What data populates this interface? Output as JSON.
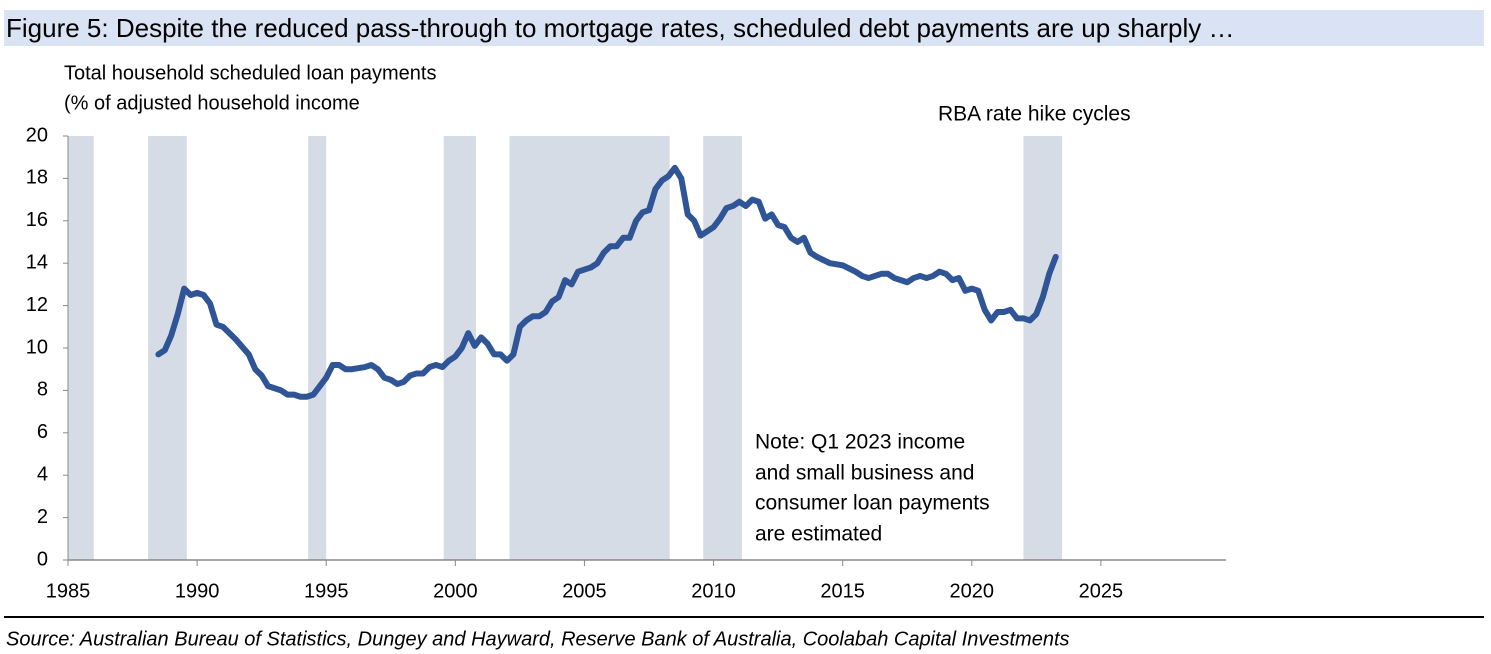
{
  "chart_data": {
    "type": "line",
    "title": "Figure 5: Despite the reduced pass-through to mortgage rates, scheduled debt payments are up sharply …",
    "y_label": [
      "Total household scheduled loan payments",
      "(% of adjusted household income"
    ],
    "shade_label": "RBA rate hike cycles",
    "note": [
      "Note: Q1 2023 income",
      "and small business and",
      "consumer loan payments",
      "are estimated"
    ],
    "source": "Source: Australian Bureau of Statistics, Dungey and Hayward, Reserve Bank of Australia, Coolabah Capital Investments",
    "shaded_ranges": [
      [
        1985.0,
        1986.0
      ],
      [
        1988.1,
        1989.6
      ],
      [
        1994.3,
        1995.0
      ],
      [
        1999.55,
        2000.8
      ],
      [
        2002.1,
        2008.3
      ],
      [
        2009.6,
        2011.1
      ],
      [
        2022.0,
        2023.5
      ]
    ],
    "shade_color": "#d6dce5",
    "x": [
      1988.5,
      1988.75,
      1989.0,
      1989.25,
      1989.5,
      1989.75,
      1990.0,
      1990.25,
      1990.5,
      1990.75,
      1991.0,
      1991.5,
      1992.0,
      1992.25,
      1992.5,
      1992.75,
      1993.0,
      1993.25,
      1993.5,
      1993.75,
      1994.0,
      1994.25,
      1994.5,
      1994.75,
      1995.0,
      1995.25,
      1995.5,
      1995.75,
      1996.0,
      1996.5,
      1996.75,
      1997.0,
      1997.25,
      1997.5,
      1997.75,
      1998.0,
      1998.25,
      1998.5,
      1998.75,
      1999.0,
      1999.25,
      1999.5,
      1999.75,
      2000.0,
      2000.25,
      2000.5,
      2000.75,
      2001.0,
      2001.25,
      2001.5,
      2001.75,
      2002.0,
      2002.25,
      2002.5,
      2002.75,
      2003.0,
      2003.25,
      2003.5,
      2003.75,
      2004.0,
      2004.25,
      2004.5,
      2004.75,
      2005.0,
      2005.25,
      2005.5,
      2005.75,
      2006.0,
      2006.25,
      2006.5,
      2006.75,
      2007.0,
      2007.25,
      2007.5,
      2007.75,
      2008.0,
      2008.25,
      2008.5,
      2008.75,
      2009.0,
      2009.25,
      2009.5,
      2009.75,
      2010.0,
      2010.25,
      2010.5,
      2010.75,
      2011.0,
      2011.25,
      2011.5,
      2011.75,
      2012.0,
      2012.25,
      2012.5,
      2012.75,
      2013.0,
      2013.25,
      2013.5,
      2013.75,
      2014.0,
      2014.5,
      2015.0,
      2015.5,
      2015.75,
      2016.0,
      2016.5,
      2016.75,
      2017.0,
      2017.25,
      2017.5,
      2017.75,
      2018.0,
      2018.25,
      2018.5,
      2018.75,
      2019.0,
      2019.25,
      2019.5,
      2019.75,
      2020.0,
      2020.25,
      2020.5,
      2020.75,
      2021.0,
      2021.25,
      2021.5,
      2021.75,
      2022.0,
      2022.25,
      2022.5,
      2022.75,
      2023.0,
      2023.25
    ],
    "series": [
      {
        "color": "#2f5597",
        "values": [
          9.7,
          9.9,
          10.6,
          11.6,
          12.8,
          12.5,
          12.6,
          12.5,
          12.1,
          11.1,
          11.0,
          10.4,
          9.7,
          9.0,
          8.7,
          8.2,
          8.1,
          8.0,
          7.8,
          7.8,
          7.7,
          7.7,
          7.8,
          8.2,
          8.6,
          9.2,
          9.2,
          9.0,
          9.0,
          9.1,
          9.2,
          9.0,
          8.6,
          8.5,
          8.3,
          8.4,
          8.7,
          8.8,
          8.8,
          9.1,
          9.2,
          9.1,
          9.4,
          9.6,
          10.0,
          10.7,
          10.1,
          10.5,
          10.2,
          9.7,
          9.7,
          9.4,
          9.7,
          11.0,
          11.3,
          11.5,
          11.5,
          11.7,
          12.2,
          12.4,
          13.2,
          13.0,
          13.6,
          13.7,
          13.8,
          14.0,
          14.5,
          14.8,
          14.8,
          15.2,
          15.2,
          16.0,
          16.4,
          16.5,
          17.5,
          17.9,
          18.1,
          18.5,
          18.0,
          16.3,
          16.0,
          15.3,
          15.5,
          15.7,
          16.1,
          16.6,
          16.7,
          16.9,
          16.7,
          17.0,
          16.9,
          16.1,
          16.3,
          15.8,
          15.7,
          15.2,
          15.0,
          15.2,
          14.5,
          14.3,
          14.0,
          13.9,
          13.6,
          13.4,
          13.3,
          13.5,
          13.5,
          13.3,
          13.2,
          13.1,
          13.3,
          13.4,
          13.3,
          13.4,
          13.6,
          13.5,
          13.2,
          13.3,
          12.7,
          12.8,
          12.7,
          11.8,
          11.3,
          11.7,
          11.7,
          11.8,
          11.4,
          11.4,
          11.3,
          11.6,
          12.4,
          13.5,
          14.3
        ]
      }
    ],
    "xlim": [
      1985,
      2030
    ],
    "xticks": [
      1985,
      1990,
      1995,
      2000,
      2005,
      2010,
      2015,
      2020,
      2025
    ],
    "ylim": [
      0,
      20
    ],
    "yticks": [
      0,
      2,
      4,
      6,
      8,
      10,
      12,
      14,
      16,
      18,
      20
    ],
    "grid": false
  }
}
